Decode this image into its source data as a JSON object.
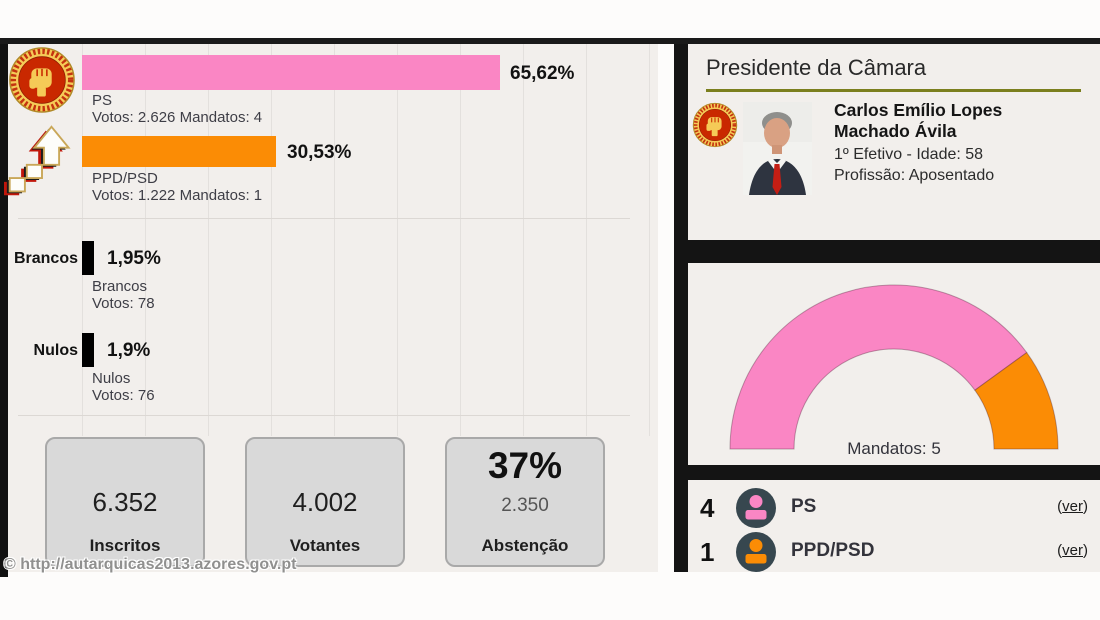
{
  "watermark": "© http://autarquicas2013.azores.gov.pt",
  "colors": {
    "ps_pink": "#FA86C4",
    "psd_orange": "#FB8C05",
    "invalid_black": "#000000",
    "panel_bg": "#F2EFEC",
    "heading_underline_olive": "#7B7F1E",
    "box_gray": "#D9D9D9",
    "icon_circle_slate": "#37474F"
  },
  "results": {
    "rows": [
      {
        "party": "PS",
        "pct": "65,62%",
        "line1": "PS",
        "line2": "Votos: 2.626 Mandatos: 4"
      },
      {
        "party": "PPD/PSD",
        "pct": "30,53%",
        "line1": "PPD/PSD",
        "line2": "Votos: 1.222 Mandatos: 1"
      },
      {
        "axis": "Brancos",
        "pct": "1,95%",
        "line1": "Brancos",
        "line2": "Votos: 78"
      },
      {
        "axis": "Nulos",
        "pct": "1,9%",
        "line1": "Nulos",
        "line2": "Votos: 76"
      }
    ]
  },
  "summary": {
    "boxes": [
      {
        "value": "6.352",
        "label": "Inscritos"
      },
      {
        "value": "4.002",
        "label": "Votantes"
      },
      {
        "value": "37%",
        "sub": "2.350",
        "label": "Abstenção"
      }
    ]
  },
  "president": {
    "title": "Presidente da Câmara",
    "name": "Carlos Emílio Lopes Machado Ávila",
    "info1": "1º Efetivo - Idade: 58",
    "info2": "Profissão: Aposentado"
  },
  "mandates": {
    "caption": "Mandatos: 5",
    "rows": [
      {
        "seats": "4",
        "party": "PS"
      },
      {
        "seats": "1",
        "party": "PPD/PSD"
      }
    ],
    "link_open": "(",
    "link_text": "ver",
    "link_close": ")"
  },
  "chart_data": [
    {
      "type": "bar",
      "orientation": "horizontal",
      "categories": [
        "PS",
        "PPD/PSD",
        "Brancos",
        "Nulos"
      ],
      "values": [
        65.62,
        30.53,
        1.95,
        1.9
      ],
      "value_labels": [
        "65,62%",
        "30,53%",
        "1,95%",
        "1,9%"
      ],
      "votes": [
        2626,
        1222,
        78,
        76
      ],
      "mandates": [
        4,
        1,
        null,
        null
      ],
      "colors": [
        "#FA86C4",
        "#FB8C05",
        "#000000",
        "#000000"
      ],
      "xlim": [
        0,
        100
      ],
      "grid": true,
      "gridline_step_pct": 10
    },
    {
      "type": "pie",
      "variant": "half_donut",
      "title": "Mandatos: 5",
      "total": 5,
      "series": [
        {
          "name": "PS",
          "value": 4,
          "color": "#FA86C4"
        },
        {
          "name": "PPD/PSD",
          "value": 1,
          "color": "#FB8C05"
        }
      ],
      "legend_position": "below"
    }
  ]
}
